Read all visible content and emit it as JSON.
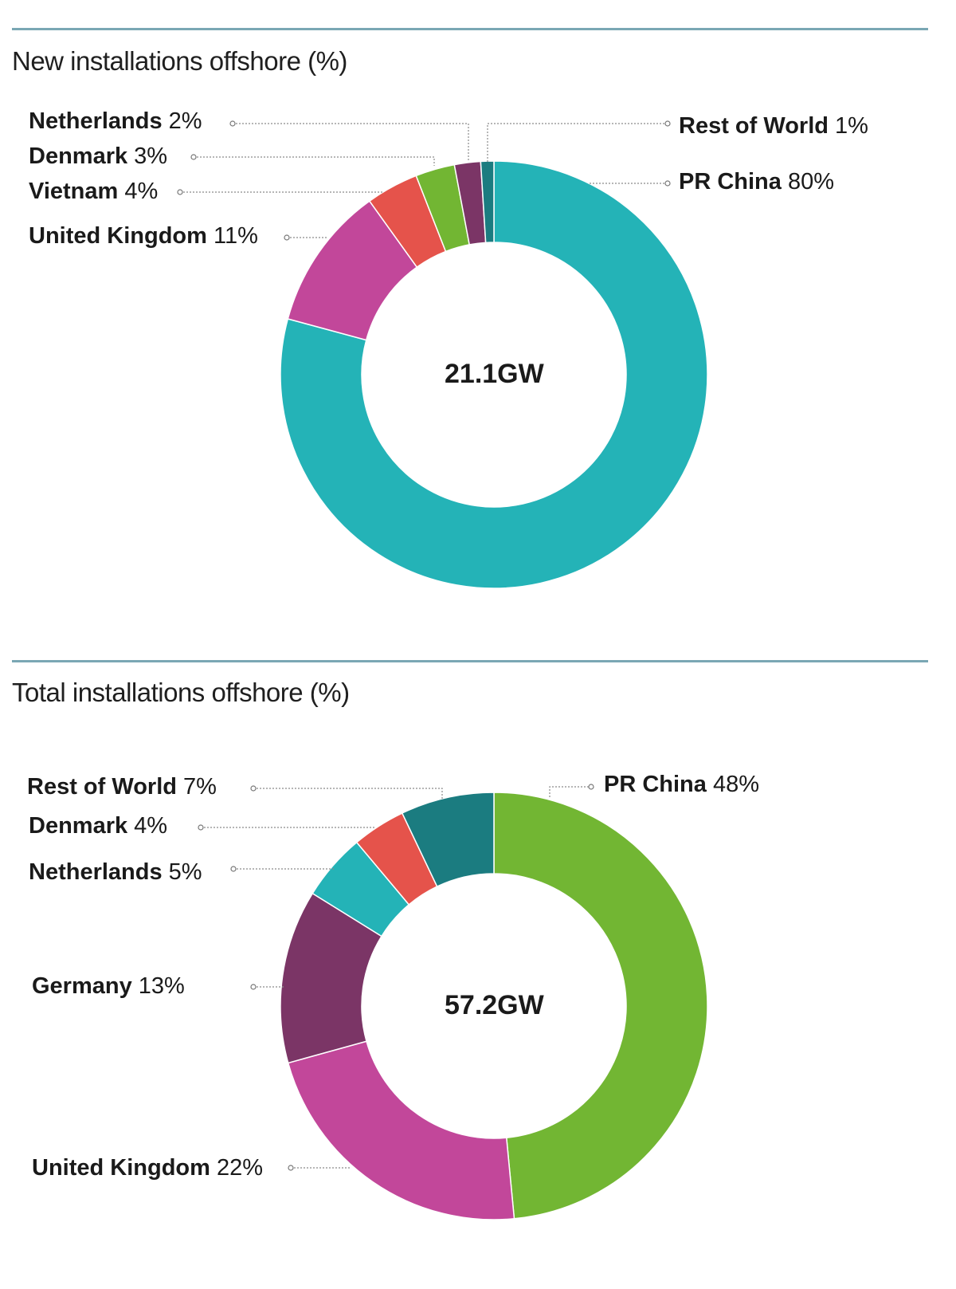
{
  "chart_data": [
    {
      "type": "pie",
      "title": "New installations offshore (%)",
      "center_label": "21.1GW",
      "slices": [
        {
          "name": "PR China",
          "value": 80,
          "display": "80%",
          "color": "#24b3b7"
        },
        {
          "name": "United Kingdom",
          "value": 11,
          "display": "11%",
          "color": "#c2479a"
        },
        {
          "name": "Vietnam",
          "value": 4,
          "display": "4%",
          "color": "#e5534b"
        },
        {
          "name": "Denmark",
          "value": 3,
          "display": "3%",
          "color": "#72b633"
        },
        {
          "name": "Netherlands",
          "value": 2,
          "display": "2%",
          "color": "#7b3566"
        },
        {
          "name": "Rest of World",
          "value": 1,
          "display": "1%",
          "color": "#1b7c80"
        }
      ]
    },
    {
      "type": "pie",
      "title": "Total installations offshore (%)",
      "center_label": "57.2GW",
      "slices": [
        {
          "name": "PR China",
          "value": 48,
          "display": "48%",
          "color": "#72b633"
        },
        {
          "name": "United Kingdom",
          "value": 22,
          "display": "22%",
          "color": "#c2479a"
        },
        {
          "name": "Germany",
          "value": 13,
          "display": "13%",
          "color": "#7b3566"
        },
        {
          "name": "Netherlands",
          "value": 5,
          "display": "5%",
          "color": "#24b3b7"
        },
        {
          "name": "Denmark",
          "value": 4,
          "display": "4%",
          "color": "#e5534b"
        },
        {
          "name": "Rest of World",
          "value": 7,
          "display": "7%",
          "color": "#1b7c80"
        }
      ]
    }
  ]
}
